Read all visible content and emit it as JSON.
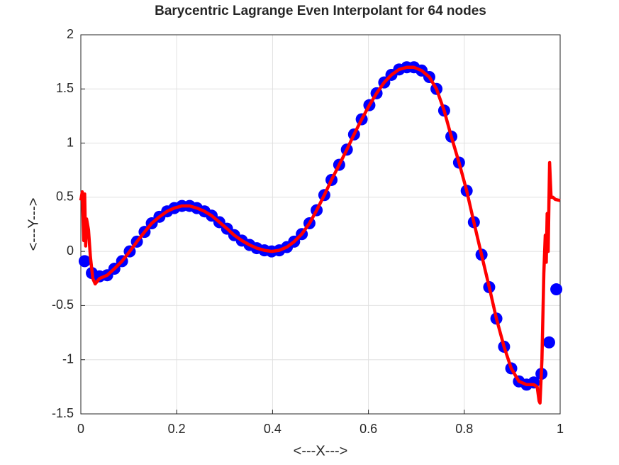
{
  "chart_data": {
    "type": "scatter-line",
    "title": "Barycentric Lagrange Even Interpolant for 64 nodes",
    "xlabel": "<---X--->",
    "ylabel": "<---Y--->",
    "xlim": [
      0,
      1
    ],
    "ylim": [
      -1.5,
      2
    ],
    "xticks": [
      0,
      0.2,
      0.4,
      0.6,
      0.8,
      1
    ],
    "yticks": [
      -1.5,
      -1,
      -0.5,
      0,
      0.5,
      1,
      1.5,
      2
    ],
    "grid": true,
    "series": [
      {
        "type": "scatter",
        "color": "#0000ff",
        "x": [
          0.008,
          0.023,
          0.039,
          0.055,
          0.07,
          0.086,
          0.102,
          0.117,
          0.133,
          0.148,
          0.164,
          0.18,
          0.195,
          0.211,
          0.227,
          0.242,
          0.258,
          0.273,
          0.289,
          0.305,
          0.32,
          0.336,
          0.352,
          0.367,
          0.383,
          0.398,
          0.414,
          0.43,
          0.445,
          0.461,
          0.477,
          0.492,
          0.508,
          0.523,
          0.539,
          0.555,
          0.57,
          0.586,
          0.602,
          0.617,
          0.633,
          0.648,
          0.664,
          0.68,
          0.695,
          0.711,
          0.727,
          0.742,
          0.758,
          0.773,
          0.789,
          0.805,
          0.82,
          0.836,
          0.852,
          0.867,
          0.883,
          0.898,
          0.914,
          0.93,
          0.945,
          0.961,
          0.977,
          0.992
        ],
        "values": [
          -0.09,
          -0.2,
          -0.23,
          -0.22,
          -0.16,
          -0.09,
          0.0,
          0.09,
          0.18,
          0.26,
          0.32,
          0.37,
          0.4,
          0.42,
          0.42,
          0.4,
          0.37,
          0.33,
          0.27,
          0.21,
          0.15,
          0.1,
          0.06,
          0.03,
          0.01,
          0.0,
          0.01,
          0.04,
          0.09,
          0.16,
          0.26,
          0.38,
          0.52,
          0.66,
          0.8,
          0.94,
          1.08,
          1.22,
          1.35,
          1.46,
          1.56,
          1.63,
          1.68,
          1.7,
          1.7,
          1.67,
          1.61,
          1.5,
          1.3,
          1.06,
          0.82,
          0.56,
          0.27,
          -0.03,
          -0.33,
          -0.62,
          -0.88,
          -1.08,
          -1.2,
          -1.23,
          -1.21,
          -1.13,
          -0.84,
          -0.35
        ]
      },
      {
        "type": "line",
        "color": "#ff0000",
        "x": [
          0,
          0.003,
          0.006,
          0.008,
          0.01,
          0.012,
          0.016,
          0.02,
          0.025,
          0.03,
          0.039,
          0.055,
          0.07,
          0.086,
          0.102,
          0.117,
          0.133,
          0.148,
          0.164,
          0.18,
          0.195,
          0.211,
          0.227,
          0.242,
          0.258,
          0.273,
          0.289,
          0.305,
          0.32,
          0.336,
          0.352,
          0.367,
          0.383,
          0.398,
          0.414,
          0.43,
          0.445,
          0.461,
          0.477,
          0.492,
          0.508,
          0.523,
          0.539,
          0.555,
          0.57,
          0.586,
          0.602,
          0.617,
          0.633,
          0.648,
          0.664,
          0.68,
          0.695,
          0.711,
          0.727,
          0.742,
          0.758,
          0.773,
          0.789,
          0.805,
          0.82,
          0.836,
          0.852,
          0.867,
          0.883,
          0.898,
          0.914,
          0.93,
          0.945,
          0.952,
          0.956,
          0.958,
          0.962,
          0.966,
          0.969,
          0.971,
          0.973,
          0.975,
          0.978,
          0.981,
          0.985,
          0.99,
          1.0
        ],
        "values": [
          0.47,
          0.55,
          0.1,
          0.53,
          0.05,
          0.3,
          0.2,
          -0.05,
          -0.25,
          -0.3,
          -0.25,
          -0.22,
          -0.16,
          -0.09,
          0.0,
          0.09,
          0.18,
          0.26,
          0.32,
          0.37,
          0.4,
          0.42,
          0.42,
          0.4,
          0.37,
          0.33,
          0.27,
          0.21,
          0.15,
          0.1,
          0.06,
          0.03,
          0.01,
          0.0,
          0.01,
          0.04,
          0.09,
          0.16,
          0.26,
          0.38,
          0.52,
          0.66,
          0.8,
          0.94,
          1.08,
          1.22,
          1.35,
          1.46,
          1.56,
          1.63,
          1.68,
          1.7,
          1.7,
          1.67,
          1.61,
          1.5,
          1.3,
          1.06,
          0.82,
          0.56,
          0.27,
          -0.03,
          -0.33,
          -0.62,
          -0.88,
          -1.08,
          -1.2,
          -1.23,
          -1.23,
          -1.25,
          -1.38,
          -1.4,
          -1.0,
          -0.2,
          0.15,
          -0.1,
          0.35,
          0.0,
          0.82,
          0.5,
          0.5,
          0.48,
          0.47
        ]
      }
    ]
  }
}
